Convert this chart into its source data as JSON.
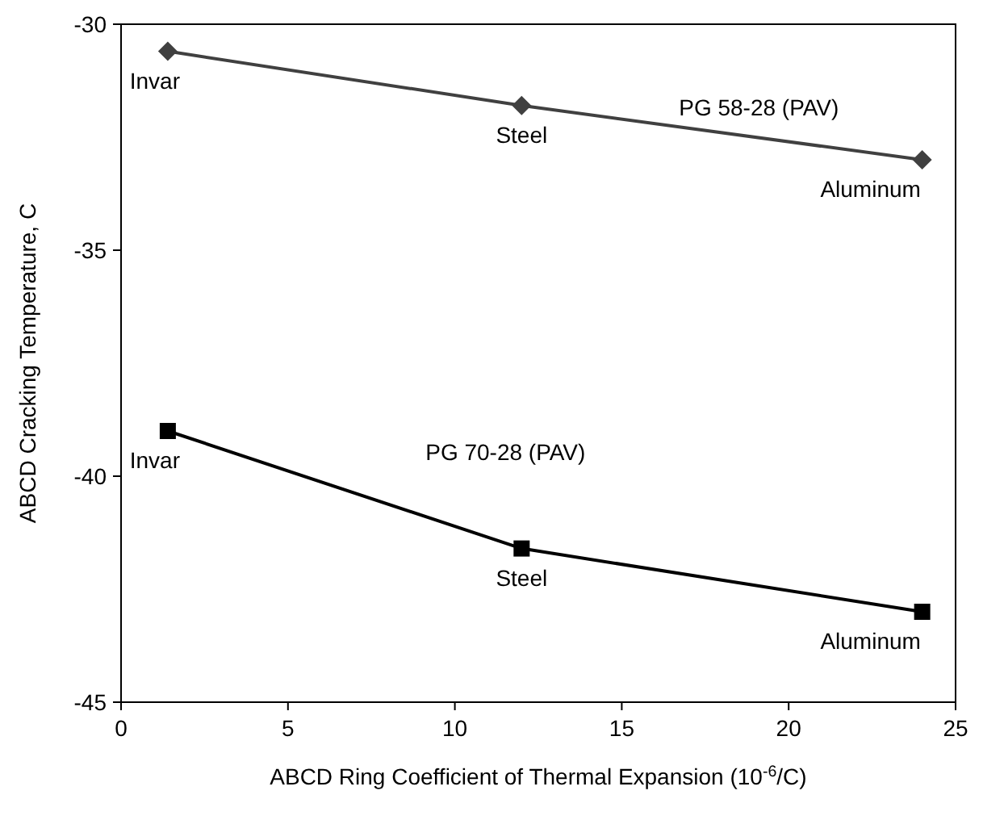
{
  "chart_data": {
    "type": "line",
    "xlabel": "ABCD Ring Coefficient of Thermal Expansion (10$^{-6}$/C)",
    "ylabel": "ABCD Cracking Temperature, C",
    "xlim": [
      0,
      25
    ],
    "xticks": [
      0,
      5,
      10,
      15,
      20,
      25
    ],
    "ylim": [
      -45,
      -30
    ],
    "yticks": [
      -45,
      -40,
      -35,
      -30
    ],
    "grid": false,
    "series": [
      {
        "name": "PG 58-28 (PAV)",
        "color": "#404040",
        "marker": "diamond",
        "x": [
          1.4,
          12,
          24
        ],
        "values": [
          -30.6,
          -31.8,
          -33.0
        ]
      },
      {
        "name": "PG 70-28 (PAV)",
        "color": "#000000",
        "marker": "square",
        "x": [
          1.4,
          12,
          24
        ],
        "values": [
          -39.0,
          -41.6,
          -43.0
        ]
      }
    ],
    "annotations": [
      {
        "text": "Invar",
        "x": 1.4,
        "y": -30.6
      },
      {
        "text": "Steel",
        "x": 12,
        "y": -31.8
      },
      {
        "text": "Aluminum",
        "x": 24,
        "y": -33.0
      },
      {
        "text": "Invar",
        "x": 1.4,
        "y": -39.0
      },
      {
        "text": "Steel",
        "x": 12,
        "y": -41.6
      },
      {
        "text": "Aluminum",
        "x": 24,
        "y": -43.0
      }
    ]
  }
}
